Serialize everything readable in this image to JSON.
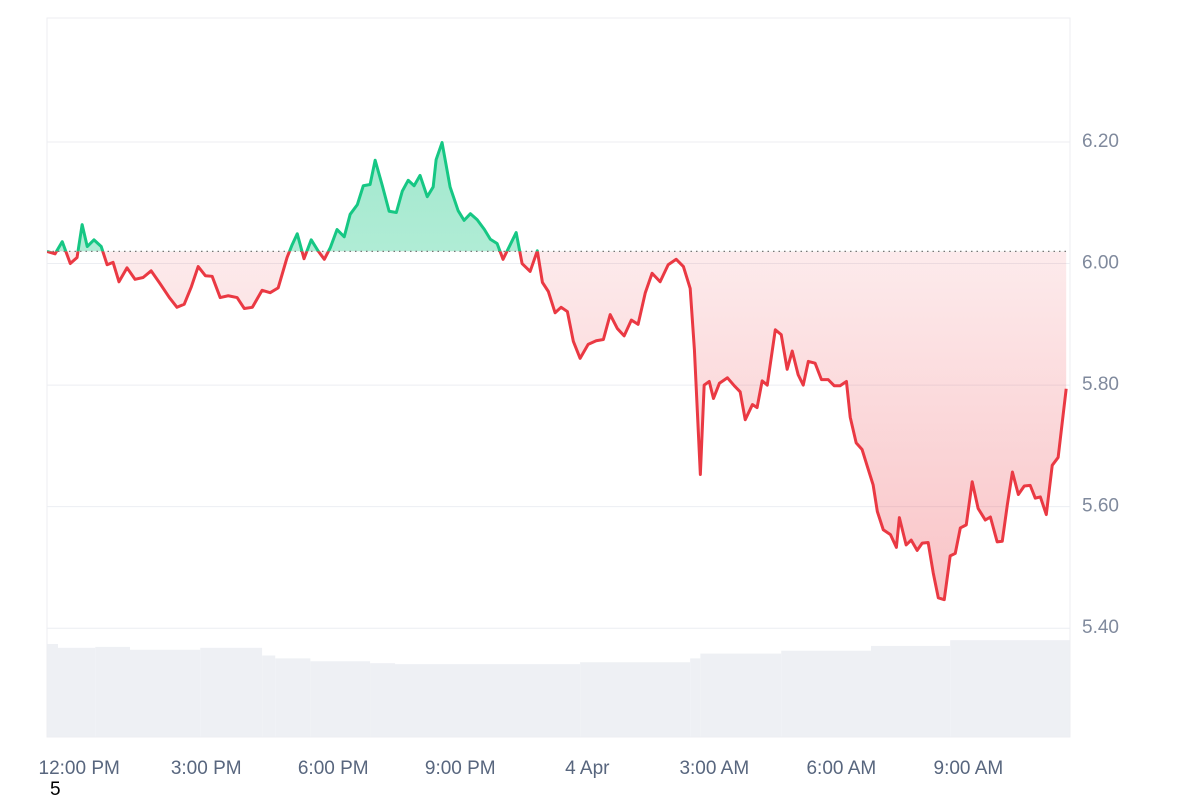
{
  "chart_data": {
    "type": "line",
    "x": [
      -0.76,
      -0.57,
      -0.4,
      -0.21,
      -0.05,
      0.07,
      0.19,
      0.35,
      0.52,
      0.66,
      0.8,
      0.94,
      1.13,
      1.32,
      1.51,
      1.7,
      1.91,
      2.13,
      2.31,
      2.48,
      2.65,
      2.81,
      2.98,
      3.14,
      3.33,
      3.52,
      3.73,
      3.9,
      4.09,
      4.32,
      4.51,
      4.7,
      4.91,
      5.03,
      5.15,
      5.31,
      5.48,
      5.65,
      5.79,
      5.93,
      6.09,
      6.26,
      6.4,
      6.57,
      6.71,
      6.87,
      6.99,
      7.16,
      7.32,
      7.49,
      7.63,
      7.77,
      7.91,
      8.05,
      8.22,
      8.36,
      8.43,
      8.57,
      8.76,
      8.95,
      9.09,
      9.24,
      9.4,
      9.57,
      9.71,
      9.87,
      10.01,
      10.18,
      10.32,
      10.46,
      10.65,
      10.82,
      10.94,
      11.08,
      11.24,
      11.38,
      11.53,
      11.67,
      11.83,
      12.02,
      12.21,
      12.38,
      12.54,
      12.71,
      12.87,
      13.04,
      13.2,
      13.37,
      13.53,
      13.72,
      13.91,
      14.1,
      14.27,
      14.43,
      14.53,
      14.67,
      14.76,
      14.88,
      14.98,
      15.12,
      15.31,
      15.47,
      15.61,
      15.73,
      15.9,
      16.01,
      16.13,
      16.25,
      16.44,
      16.58,
      16.72,
      16.84,
      16.98,
      17.1,
      17.22,
      17.38,
      17.53,
      17.69,
      17.83,
      17.97,
      18.12,
      18.21,
      18.35,
      18.49,
      18.61,
      18.75,
      18.85,
      18.99,
      19.16,
      19.3,
      19.37,
      19.53,
      19.65,
      19.79,
      19.91,
      20.05,
      20.17,
      20.29,
      20.43,
      20.57,
      20.69,
      20.81,
      20.95,
      21.09,
      21.23,
      21.4,
      21.52,
      21.68,
      21.8,
      21.92,
      22.04,
      22.18,
      22.32,
      22.46,
      22.58,
      22.7,
      22.84,
      22.98,
      23.12,
      23.31
    ],
    "values": [
      6.02,
      6.016,
      6.036,
      6.0,
      6.01,
      6.064,
      6.028,
      6.039,
      6.028,
      5.998,
      6.002,
      5.97,
      5.993,
      5.974,
      5.977,
      5.988,
      5.967,
      5.944,
      5.928,
      5.933,
      5.962,
      5.995,
      5.98,
      5.979,
      5.944,
      5.947,
      5.944,
      5.926,
      5.928,
      5.956,
      5.952,
      5.96,
      6.01,
      6.031,
      6.049,
      6.008,
      6.039,
      6.02,
      6.007,
      6.026,
      6.056,
      6.044,
      6.081,
      6.097,
      6.128,
      6.13,
      6.17,
      6.128,
      6.086,
      6.084,
      6.119,
      6.137,
      6.128,
      6.145,
      6.11,
      6.126,
      6.171,
      6.199,
      6.126,
      6.087,
      6.071,
      6.082,
      6.072,
      6.056,
      6.04,
      6.033,
      6.007,
      6.031,
      6.051,
      6.0,
      5.987,
      6.021,
      5.969,
      5.954,
      5.919,
      5.928,
      5.921,
      5.872,
      5.844,
      5.867,
      5.873,
      5.875,
      5.916,
      5.893,
      5.881,
      5.907,
      5.9,
      5.952,
      5.984,
      5.97,
      5.998,
      6.007,
      5.995,
      5.959,
      5.858,
      5.653,
      5.8,
      5.806,
      5.778,
      5.803,
      5.812,
      5.799,
      5.789,
      5.743,
      5.768,
      5.763,
      5.807,
      5.8,
      5.891,
      5.883,
      5.826,
      5.856,
      5.817,
      5.8,
      5.839,
      5.836,
      5.809,
      5.809,
      5.799,
      5.799,
      5.806,
      5.747,
      5.705,
      5.694,
      5.667,
      5.636,
      5.592,
      5.562,
      5.554,
      5.533,
      5.582,
      5.537,
      5.545,
      5.528,
      5.54,
      5.541,
      5.491,
      5.45,
      5.447,
      5.519,
      5.523,
      5.565,
      5.57,
      5.641,
      5.597,
      5.578,
      5.583,
      5.542,
      5.543,
      5.603,
      5.657,
      5.62,
      5.634,
      5.635,
      5.614,
      5.616,
      5.587,
      5.668,
      5.681,
      5.794
    ],
    "baseline": 6.02,
    "up_color": "#16c784",
    "down_color": "#ea3943",
    "xlim": [
      -0.76,
      23.4
    ],
    "xticks": [
      {
        "value": 0,
        "label": "12:00 PM"
      },
      {
        "value": 3,
        "label": "3:00 PM"
      },
      {
        "value": 6,
        "label": "6:00 PM"
      },
      {
        "value": 9,
        "label": "9:00 PM"
      },
      {
        "value": 12,
        "label": "4 Apr"
      },
      {
        "value": 15,
        "label": "3:00 AM"
      },
      {
        "value": 18,
        "label": "6:00 AM"
      },
      {
        "value": 21,
        "label": "9:00 AM"
      }
    ],
    "ylim": [
      5.221,
      6.404
    ],
    "yticks": [
      {
        "value": 5.4,
        "label": "5.40"
      },
      {
        "value": 5.6,
        "label": "5.60"
      },
      {
        "value": 5.8,
        "label": "5.80"
      },
      {
        "value": 6.0,
        "label": "6.00"
      },
      {
        "value": 6.2,
        "label": "6.20"
      }
    ],
    "grid": true,
    "volume": {
      "bins": [
        -0.76,
        -0.5,
        0.38,
        1.2,
        2.86,
        4.32,
        4.63,
        5.46,
        6.87,
        7.46,
        11.83,
        14.43,
        14.67,
        16.58,
        18.7,
        20.57,
        23.4
      ],
      "values": [
        97,
        93,
        94,
        91,
        93,
        85,
        82,
        79,
        77,
        76,
        78,
        82,
        87,
        90,
        95,
        101
      ],
      "color": "#eef0f4",
      "y2lim": [
        0,
        750
      ]
    },
    "footer_label": "5"
  }
}
